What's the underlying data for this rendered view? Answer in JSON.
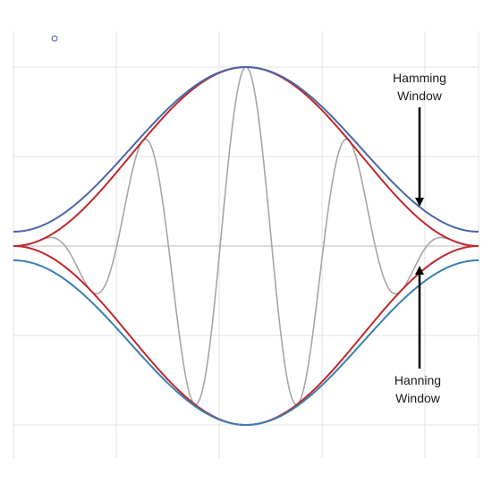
{
  "chart_data": {
    "type": "line",
    "title": "",
    "xlabel": "",
    "ylabel": "",
    "xlim": [
      0,
      1
    ],
    "ylim": [
      -1.1,
      1.1
    ],
    "grid": true,
    "legend": "none",
    "series": [
      {
        "name": "Hamming Window",
        "kind": "envelope",
        "window": "hamming",
        "alpha": 0.54,
        "beta": 0.46,
        "sign": 1,
        "color": "#4a66a8"
      },
      {
        "name": "Hamming Window",
        "kind": "envelope",
        "window": "hamming",
        "alpha": 0.54,
        "beta": 0.46,
        "sign": -1,
        "color": "#3a7fb0"
      },
      {
        "name": "Hanning Window",
        "kind": "envelope",
        "window": "hanning",
        "alpha": 0.5,
        "beta": 0.5,
        "sign": 1,
        "color": "#c0282d"
      },
      {
        "name": "Hanning Window",
        "kind": "envelope",
        "window": "hanning",
        "alpha": 0.5,
        "beta": 0.5,
        "sign": -1,
        "color": "#c0282d"
      },
      {
        "name": "",
        "kind": "signal",
        "window": "hanning",
        "alpha": 0.5,
        "beta": 0.5,
        "cycles": 4.5,
        "color": "#a6a6a6"
      }
    ],
    "annotations": [
      {
        "id": "hamming",
        "lines": [
          "Hamming",
          "Window"
        ],
        "arrow": "down"
      },
      {
        "id": "hanning",
        "lines": [
          "Hanning",
          "Window"
        ],
        "arrow": "up"
      }
    ]
  },
  "marker_color": "#4b56a8"
}
